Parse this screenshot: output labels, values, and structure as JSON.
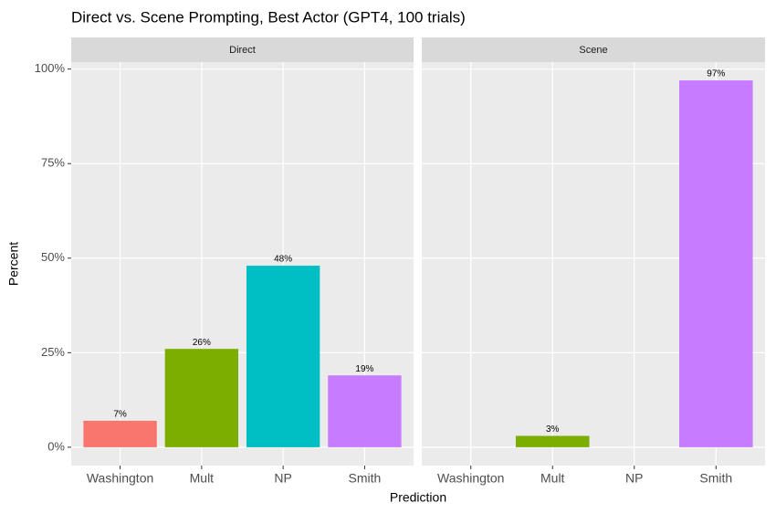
{
  "chart_data": {
    "type": "bar",
    "title": "Direct vs. Scene Prompting, Best Actor (GPT4, 100 trials)",
    "x_label": "Prediction",
    "y_label": "Percent",
    "categories": [
      "Washington",
      "Mult",
      "NP",
      "Smith"
    ],
    "colors": [
      "#F8766D",
      "#7CAE00",
      "#00BFC4",
      "#C77CFF"
    ],
    "ylim": [
      -4.85,
      101.85
    ],
    "yticks": [
      {
        "value": 0,
        "label": "0%"
      },
      {
        "value": 25,
        "label": "25%"
      },
      {
        "value": 50,
        "label": "50%"
      },
      {
        "value": 75,
        "label": "75%"
      },
      {
        "value": 100,
        "label": "100%"
      }
    ],
    "grid": true,
    "facets": [
      {
        "title": "Direct",
        "values": [
          7,
          26,
          48,
          19
        ],
        "value_labels": [
          "7%",
          "26%",
          "48%",
          "19%"
        ]
      },
      {
        "title": "Scene",
        "values": [
          null,
          3,
          null,
          97
        ],
        "value_labels": [
          null,
          "3%",
          null,
          "97%"
        ]
      }
    ]
  }
}
